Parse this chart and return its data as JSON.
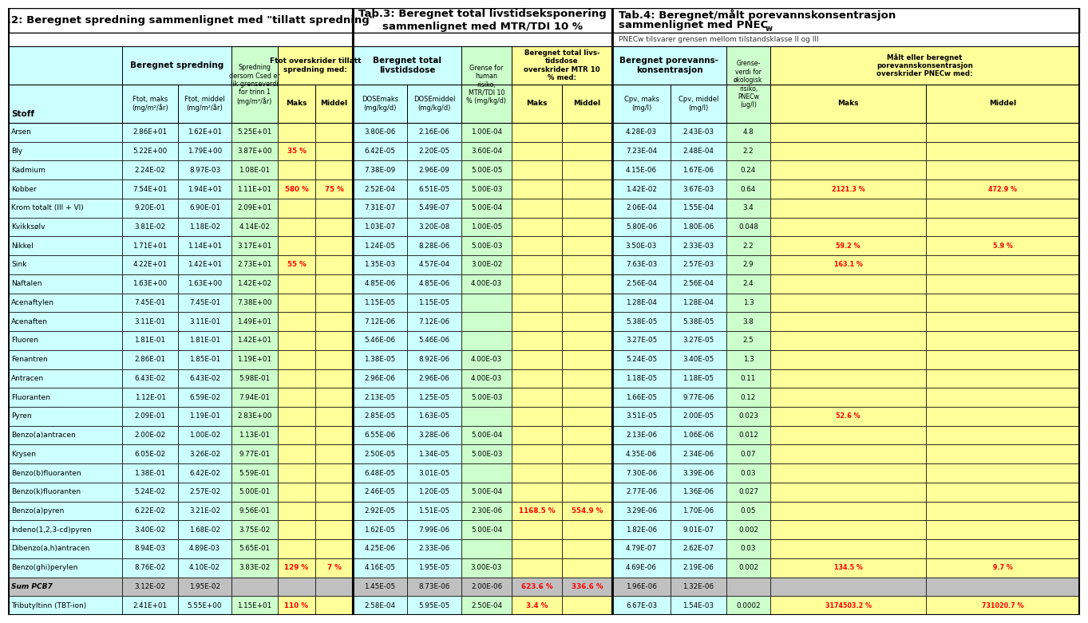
{
  "title1": "Tab.2: Beregnet spredning sammenlignet med \"tillatt spredning\"",
  "title2": "Tab.3: Beregnet total livstidseksponering\nsammenlignet med MTR/TDI 10 %",
  "title3_line1": "Tab.4: Beregnet/målt porevannskonsentrasjon",
  "title3_line2": "sammenlignet med PNEC",
  "title3_sub": "w",
  "subtitle3": "PNEC₂ tilsvarer grensen mellom tilstandsklasse II og III",
  "subtitle3_plain": "PNECw tilsvarer grensen mellom tilstandsklasse II og III",
  "rows": [
    {
      "stoff": "Arsen",
      "t2_maks": "2.86E+01",
      "t2_mid": "1.62E+01",
      "t2_grense": "5.25E+01",
      "t2_over_maks": "",
      "t2_over_mid": "",
      "t3_maks": "3.80E-06",
      "t3_mid": "2.16E-06",
      "t3_grense": "1.00E-04",
      "t3_over_maks": "",
      "t3_over_mid": "",
      "t4_maks": "4.28E-03",
      "t4_mid": "2.43E-03",
      "t4_grense": "4.8",
      "t4_over_maks": "",
      "t4_over_mid": ""
    },
    {
      "stoff": "Bly",
      "t2_maks": "5.22E+00",
      "t2_mid": "1.79E+00",
      "t2_grense": "3.87E+00",
      "t2_over_maks": "35 %",
      "t2_over_mid": "",
      "t3_maks": "6.42E-05",
      "t3_mid": "2.20E-05",
      "t3_grense": "3.60E-04",
      "t3_over_maks": "",
      "t3_over_mid": "",
      "t4_maks": "7.23E-04",
      "t4_mid": "2.48E-04",
      "t4_grense": "2.2",
      "t4_over_maks": "",
      "t4_over_mid": ""
    },
    {
      "stoff": "Kadmium",
      "t2_maks": "2.24E-02",
      "t2_mid": "8.97E-03",
      "t2_grense": "1.08E-01",
      "t2_over_maks": "",
      "t2_over_mid": "",
      "t3_maks": "7.38E-09",
      "t3_mid": "2.96E-09",
      "t3_grense": "5.00E-05",
      "t3_over_maks": "",
      "t3_over_mid": "",
      "t4_maks": "4.15E-06",
      "t4_mid": "1.67E-06",
      "t4_grense": "0.24",
      "t4_over_maks": "",
      "t4_over_mid": ""
    },
    {
      "stoff": "Kobber",
      "t2_maks": "7.54E+01",
      "t2_mid": "1.94E+01",
      "t2_grense": "1.11E+01",
      "t2_over_maks": "580 %",
      "t2_over_mid": "75 %",
      "t3_maks": "2.52E-04",
      "t3_mid": "6.51E-05",
      "t3_grense": "5.00E-03",
      "t3_over_maks": "",
      "t3_over_mid": "",
      "t4_maks": "1.42E-02",
      "t4_mid": "3.67E-03",
      "t4_grense": "0.64",
      "t4_over_maks": "2121.3 %",
      "t4_over_mid": "472.9 %"
    },
    {
      "stoff": "Krom totalt (III + VI)",
      "t2_maks": "9.20E-01",
      "t2_mid": "6.90E-01",
      "t2_grense": "2.09E+01",
      "t2_over_maks": "",
      "t2_over_mid": "",
      "t3_maks": "7.31E-07",
      "t3_mid": "5.49E-07",
      "t3_grense": "5.00E-04",
      "t3_over_maks": "",
      "t3_over_mid": "",
      "t4_maks": "2.06E-04",
      "t4_mid": "1.55E-04",
      "t4_grense": "3.4",
      "t4_over_maks": "",
      "t4_over_mid": ""
    },
    {
      "stoff": "Kvikksølv",
      "t2_maks": "3.81E-02",
      "t2_mid": "1.18E-02",
      "t2_grense": "4.14E-02",
      "t2_over_maks": "",
      "t2_over_mid": "",
      "t3_maks": "1.03E-07",
      "t3_mid": "3.20E-08",
      "t3_grense": "1.00E-05",
      "t3_over_maks": "",
      "t3_over_mid": "",
      "t4_maks": "5.80E-06",
      "t4_mid": "1.80E-06",
      "t4_grense": "0.048",
      "t4_over_maks": "",
      "t4_over_mid": ""
    },
    {
      "stoff": "Nikkel",
      "t2_maks": "1.71E+01",
      "t2_mid": "1.14E+01",
      "t2_grense": "3.17E+01",
      "t2_over_maks": "",
      "t2_over_mid": "",
      "t3_maks": "1.24E-05",
      "t3_mid": "8.28E-06",
      "t3_grense": "5.00E-03",
      "t3_over_maks": "",
      "t3_over_mid": "",
      "t4_maks": "3.50E-03",
      "t4_mid": "2.33E-03",
      "t4_grense": "2.2",
      "t4_over_maks": "59.2 %",
      "t4_over_mid": "5.9 %"
    },
    {
      "stoff": "Sink",
      "t2_maks": "4.22E+01",
      "t2_mid": "1.42E+01",
      "t2_grense": "2.73E+01",
      "t2_over_maks": "55 %",
      "t2_over_mid": "",
      "t3_maks": "1.35E-03",
      "t3_mid": "4.57E-04",
      "t3_grense": "3.00E-02",
      "t3_over_maks": "",
      "t3_over_mid": "",
      "t4_maks": "7.63E-03",
      "t4_mid": "2.57E-03",
      "t4_grense": "2.9",
      "t4_over_maks": "163.1 %",
      "t4_over_mid": ""
    },
    {
      "stoff": "Naftalen",
      "t2_maks": "1.63E+00",
      "t2_mid": "1.63E+00",
      "t2_grense": "1.42E+02",
      "t2_over_maks": "",
      "t2_over_mid": "",
      "t3_maks": "4.85E-06",
      "t3_mid": "4.85E-06",
      "t3_grense": "4.00E-03",
      "t3_over_maks": "",
      "t3_over_mid": "",
      "t4_maks": "2.56E-04",
      "t4_mid": "2.56E-04",
      "t4_grense": "2.4",
      "t4_over_maks": "",
      "t4_over_mid": ""
    },
    {
      "stoff": "Acenaftylen",
      "t2_maks": "7.45E-01",
      "t2_mid": "7.45E-01",
      "t2_grense": "7.38E+00",
      "t2_over_maks": "",
      "t2_over_mid": "",
      "t3_maks": "1.15E-05",
      "t3_mid": "1.15E-05",
      "t3_grense": "",
      "t3_over_maks": "",
      "t3_over_mid": "",
      "t4_maks": "1.28E-04",
      "t4_mid": "1.28E-04",
      "t4_grense": "1.3",
      "t4_over_maks": "",
      "t4_over_mid": ""
    },
    {
      "stoff": "Acenaften",
      "t2_maks": "3.11E-01",
      "t2_mid": "3.11E-01",
      "t2_grense": "1.49E+01",
      "t2_over_maks": "",
      "t2_over_mid": "",
      "t3_maks": "7.12E-06",
      "t3_mid": "7.12E-06",
      "t3_grense": "",
      "t3_over_maks": "",
      "t3_over_mid": "",
      "t4_maks": "5.38E-05",
      "t4_mid": "5.38E-05",
      "t4_grense": "3.8",
      "t4_over_maks": "",
      "t4_over_mid": ""
    },
    {
      "stoff": "Fluoren",
      "t2_maks": "1.81E-01",
      "t2_mid": "1.81E-01",
      "t2_grense": "1.42E+01",
      "t2_over_maks": "",
      "t2_over_mid": "",
      "t3_maks": "5.46E-06",
      "t3_mid": "5.46E-06",
      "t3_grense": "",
      "t3_over_maks": "",
      "t3_over_mid": "",
      "t4_maks": "3.27E-05",
      "t4_mid": "3.27E-05",
      "t4_grense": "2.5",
      "t4_over_maks": "",
      "t4_over_mid": ""
    },
    {
      "stoff": "Fenantren",
      "t2_maks": "2.86E-01",
      "t2_mid": "1.85E-01",
      "t2_grense": "1.19E+01",
      "t2_over_maks": "",
      "t2_over_mid": "",
      "t3_maks": "1.38E-05",
      "t3_mid": "8.92E-06",
      "t3_grense": "4.00E-03",
      "t3_over_maks": "",
      "t3_over_mid": "",
      "t4_maks": "5.24E-05",
      "t4_mid": "3.40E-05",
      "t4_grense": "1.3",
      "t4_over_maks": "",
      "t4_over_mid": ""
    },
    {
      "stoff": "Antracen",
      "t2_maks": "6.43E-02",
      "t2_mid": "6.43E-02",
      "t2_grense": "5.98E-01",
      "t2_over_maks": "",
      "t2_over_mid": "",
      "t3_maks": "2.96E-06",
      "t3_mid": "2.96E-06",
      "t3_grense": "4.00E-03",
      "t3_over_maks": "",
      "t3_over_mid": "",
      "t4_maks": "1.18E-05",
      "t4_mid": "1.18E-05",
      "t4_grense": "0.11",
      "t4_over_maks": "",
      "t4_over_mid": ""
    },
    {
      "stoff": "Fluoranten",
      "t2_maks": "1.12E-01",
      "t2_mid": "6.59E-02",
      "t2_grense": "7.94E-01",
      "t2_over_maks": "",
      "t2_over_mid": "",
      "t3_maks": "2.13E-05",
      "t3_mid": "1.25E-05",
      "t3_grense": "5.00E-03",
      "t3_over_maks": "",
      "t3_over_mid": "",
      "t4_maks": "1.66E-05",
      "t4_mid": "9.77E-06",
      "t4_grense": "0.12",
      "t4_over_maks": "",
      "t4_over_mid": ""
    },
    {
      "stoff": "Pyren",
      "t2_maks": "2.09E-01",
      "t2_mid": "1.19E-01",
      "t2_grense": "2.83E+00",
      "t2_over_maks": "",
      "t2_over_mid": "",
      "t3_maks": "2.85E-05",
      "t3_mid": "1.63E-05",
      "t3_grense": "",
      "t3_over_maks": "",
      "t3_over_mid": "",
      "t4_maks": "3.51E-05",
      "t4_mid": "2.00E-05",
      "t4_grense": "0.023",
      "t4_over_maks": "52.6 %",
      "t4_over_mid": ""
    },
    {
      "stoff": "Benzo(a)antracen",
      "t2_maks": "2.00E-02",
      "t2_mid": "1.00E-02",
      "t2_grense": "1.13E-01",
      "t2_over_maks": "",
      "t2_over_mid": "",
      "t3_maks": "6.55E-06",
      "t3_mid": "3.28E-06",
      "t3_grense": "5.00E-04",
      "t3_over_maks": "",
      "t3_over_mid": "",
      "t4_maks": "2.13E-06",
      "t4_mid": "1.06E-06",
      "t4_grense": "0.012",
      "t4_over_maks": "",
      "t4_over_mid": ""
    },
    {
      "stoff": "Krysen",
      "t2_maks": "6.05E-02",
      "t2_mid": "3.26E-02",
      "t2_grense": "9.77E-01",
      "t2_over_maks": "",
      "t2_over_mid": "",
      "t3_maks": "2.50E-05",
      "t3_mid": "1.34E-05",
      "t3_grense": "5.00E-03",
      "t3_over_maks": "",
      "t3_over_mid": "",
      "t4_maks": "4.35E-06",
      "t4_mid": "2.34E-06",
      "t4_grense": "0.07",
      "t4_over_maks": "",
      "t4_over_mid": ""
    },
    {
      "stoff": "Benzo(b)fluoranten",
      "t2_maks": "1.38E-01",
      "t2_mid": "6.42E-02",
      "t2_grense": "5.59E-01",
      "t2_over_maks": "",
      "t2_over_mid": "",
      "t3_maks": "6.48E-05",
      "t3_mid": "3.01E-05",
      "t3_grense": "",
      "t3_over_maks": "",
      "t3_over_mid": "",
      "t4_maks": "7.30E-06",
      "t4_mid": "3.39E-06",
      "t4_grense": "0.03",
      "t4_over_maks": "",
      "t4_over_mid": ""
    },
    {
      "stoff": "Benzo(k)fluoranten",
      "t2_maks": "5.24E-02",
      "t2_mid": "2.57E-02",
      "t2_grense": "5.00E-01",
      "t2_over_maks": "",
      "t2_over_mid": "",
      "t3_maks": "2.46E-05",
      "t3_mid": "1.20E-05",
      "t3_grense": "5.00E-04",
      "t3_over_maks": "",
      "t3_over_mid": "",
      "t4_maks": "2.77E-06",
      "t4_mid": "1.36E-06",
      "t4_grense": "0.027",
      "t4_over_maks": "",
      "t4_over_mid": ""
    },
    {
      "stoff": "Benzo(a)pyren",
      "t2_maks": "6.22E-02",
      "t2_mid": "3.21E-02",
      "t2_grense": "9.56E-01",
      "t2_over_maks": "",
      "t2_over_mid": "",
      "t3_maks": "2.92E-05",
      "t3_mid": "1.51E-05",
      "t3_grense": "2.30E-06",
      "t3_over_maks": "1168.5 %",
      "t3_over_mid": "554.9 %",
      "t4_maks": "3.29E-06",
      "t4_mid": "1.70E-06",
      "t4_grense": "0.05",
      "t4_over_maks": "",
      "t4_over_mid": ""
    },
    {
      "stoff": "Indeno(1,2,3-cd)pyren",
      "t2_maks": "3.40E-02",
      "t2_mid": "1.68E-02",
      "t2_grense": "3.75E-02",
      "t2_over_maks": "",
      "t2_over_mid": "",
      "t3_maks": "1.62E-05",
      "t3_mid": "7.99E-06",
      "t3_grense": "5.00E-04",
      "t3_over_maks": "",
      "t3_over_mid": "",
      "t4_maks": "1.82E-06",
      "t4_mid": "9.01E-07",
      "t4_grense": "0.002",
      "t4_over_maks": "",
      "t4_over_mid": ""
    },
    {
      "stoff": "Dibenzo(a,h)antracen",
      "t2_maks": "8.94E-03",
      "t2_mid": "4.89E-03",
      "t2_grense": "5.65E-01",
      "t2_over_maks": "",
      "t2_over_mid": "",
      "t3_maks": "4.25E-06",
      "t3_mid": "2.33E-06",
      "t3_grense": "",
      "t3_over_maks": "",
      "t3_over_mid": "",
      "t4_maks": "4.79E-07",
      "t4_mid": "2.62E-07",
      "t4_grense": "0.03",
      "t4_over_maks": "",
      "t4_over_mid": ""
    },
    {
      "stoff": "Benzo(ghi)perylen",
      "t2_maks": "8.76E-02",
      "t2_mid": "4.10E-02",
      "t2_grense": "3.83E-02",
      "t2_over_maks": "129 %",
      "t2_over_mid": "7 %",
      "t3_maks": "4.16E-05",
      "t3_mid": "1.95E-05",
      "t3_grense": "3.00E-03",
      "t3_over_maks": "",
      "t3_over_mid": "",
      "t4_maks": "4.69E-06",
      "t4_mid": "2.19E-06",
      "t4_grense": "0.002",
      "t4_over_maks": "134.5 %",
      "t4_over_mid": "9.7 %"
    },
    {
      "stoff": "Sum PCB7",
      "t2_maks": "3.12E-02",
      "t2_mid": "1.95E-02",
      "t2_grense": "",
      "t2_over_maks": "",
      "t2_over_mid": "",
      "t3_maks": "1.45E-05",
      "t3_mid": "8.73E-06",
      "t3_grense": "2.00E-06",
      "t3_over_maks": "623.6 %",
      "t3_over_mid": "336.6 %",
      "t4_maks": "1.96E-06",
      "t4_mid": "1.32E-06",
      "t4_grense": "",
      "t4_over_maks": "",
      "t4_over_mid": "",
      "italic": true
    },
    {
      "stoff": "Tributyltinn (TBT-ion)",
      "t2_maks": "2.41E+01",
      "t2_mid": "5.55E+00",
      "t2_grense": "1.15E+01",
      "t2_over_maks": "110 %",
      "t2_over_mid": "",
      "t3_maks": "2.58E-04",
      "t3_mid": "5.95E-05",
      "t3_grense": "2.50E-04",
      "t3_over_maks": "3.4 %",
      "t3_over_mid": "",
      "t4_maks": "6.67E-03",
      "t4_mid": "1.54E-03",
      "t4_grense": "0.0002",
      "t4_over_maks": "3174503.2 %",
      "t4_over_mid": "731020.7 %"
    }
  ]
}
